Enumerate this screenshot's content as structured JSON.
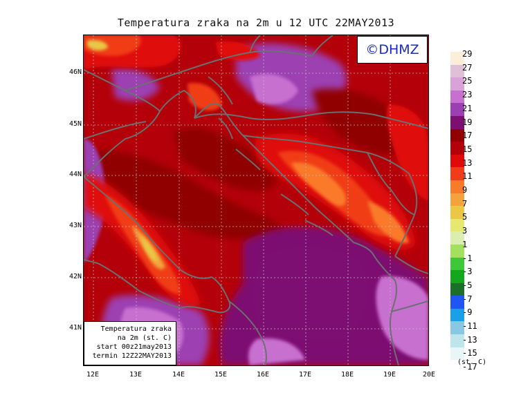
{
  "title": "Temperatura zraka na 2m u 12 UTC 22MAY2013",
  "logo": "©DHMZ",
  "info": [
    "Temperatura zraka",
    "na 2m (st. C)",
    "start 00z21may2013",
    "termin 12Z22MAY2013"
  ],
  "lat_labels": [
    "46N",
    "45N",
    "44N",
    "43N",
    "42N",
    "41N"
  ],
  "lon_labels": [
    "12E",
    "13E",
    "14E",
    "15E",
    "16E",
    "17E",
    "18E",
    "19E",
    "20E"
  ],
  "legend": {
    "labels": [
      "29",
      "27",
      "25",
      "23",
      "21",
      "19",
      "17",
      "15",
      "13",
      "11",
      "9",
      "7",
      "5",
      "3",
      "1",
      "-1",
      "-3",
      "-5",
      "-7",
      "-9",
      "-11",
      "-13",
      "-15",
      "-17"
    ],
    "colors": [
      "#fdeed9",
      "#e0c0d8",
      "#d9a2d8",
      "#c870d0",
      "#9c3fb2",
      "#7e0f72",
      "#900000",
      "#b40008",
      "#e00a0a",
      "#f03c18",
      "#fa7a2c",
      "#f3a23e",
      "#eac845",
      "#e6e870",
      "#dcedb0",
      "#a2e05e",
      "#3cc839",
      "#14a71e",
      "#1c6e28",
      "#1f55f0",
      "#1aa0e8",
      "#88c8e2",
      "#bfe5ec",
      "#e8f6f8"
    ],
    "unit": "(st. C)"
  }
}
